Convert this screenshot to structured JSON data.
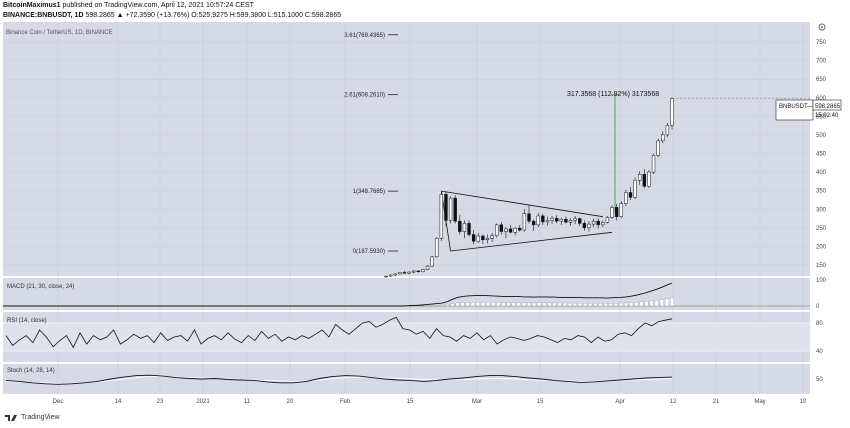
{
  "header": {
    "author": "BitcoinMaximus1",
    "published_text": "published on TradingView.com, April 12, 2021 10:57:24 CEST",
    "symbol_line_prefix": "BINANCE:BNBUSDT, 1D",
    "symbol_line_values": "598.2865 ▲ +72.3590 (+13.76%) O:525.9275 H:599.3800 L:515.1000 C:598.2865"
  },
  "chart_title": "Binance Coin / TetherUS, 1D, BINANCE",
  "price_badge": {
    "symbol": "BNBUSDT",
    "sep": "—",
    "price": "598.2865",
    "countdown": "15:02:40"
  },
  "measure_label": "317.3568 (112.92%) 3173568",
  "fib_levels": [
    {
      "label": "3.61(769.4365)",
      "value": 769.4365
    },
    {
      "label": "2.61(608.2610)",
      "value": 608.261
    },
    {
      "label": "1(348.7685)",
      "value": 348.7685
    },
    {
      "label": "0(187.5930)",
      "value": 187.593
    }
  ],
  "indicators": {
    "macd_label": "MACD (21, 30, close, 24)",
    "rsi_label": "RSI (14, close)",
    "stoch_label": "Stoch (14, 28, 14)",
    "macd_ticks": [
      "100",
      "0"
    ],
    "rsi_ticks": [
      "80",
      "40"
    ],
    "stoch_ticks": [
      "50"
    ]
  },
  "footer": {
    "brand": "TradingView"
  },
  "colors": {
    "panel_bg": "#d6dae6",
    "rsi_band": "#dfe2ea",
    "line": "#111111",
    "grid": "#c8ccd8",
    "measure": "#4caf50"
  },
  "chart_data": {
    "type": "candlestick",
    "title": "Binance Coin / TetherUS, 1D, BINANCE",
    "y_ticks": [
      150,
      200,
      250,
      300,
      350,
      400,
      450,
      500,
      550,
      600,
      650,
      700,
      750
    ],
    "x_ticks": [
      "Dec",
      "14",
      "23",
      "2021",
      "11",
      "20",
      "Feb",
      "15",
      "Mar",
      "15",
      "Apr",
      "12",
      "21",
      "May",
      "10"
    ],
    "last_price": 598.2865,
    "series": [
      {
        "name": "BNBUSDT",
        "ohlc": [
          [
            118,
            121,
            116,
            120
          ],
          [
            120,
            125,
            118,
            123
          ],
          [
            123,
            128,
            120,
            126
          ],
          [
            126,
            132,
            124,
            130
          ],
          [
            130,
            134,
            126,
            128
          ],
          [
            128,
            133,
            125,
            131
          ],
          [
            131,
            136,
            128,
            134
          ],
          [
            134,
            136,
            129,
            132
          ],
          [
            132,
            140,
            130,
            138
          ],
          [
            138,
            150,
            136,
            147
          ],
          [
            147,
            175,
            145,
            172
          ],
          [
            172,
            225,
            170,
            222
          ],
          [
            222,
            345,
            215,
            340
          ],
          [
            340,
            348,
            255,
            270
          ],
          [
            270,
            335,
            262,
            330
          ],
          [
            330,
            338,
            262,
            268
          ],
          [
            268,
            285,
            232,
            240
          ],
          [
            240,
            270,
            222,
            262
          ],
          [
            262,
            270,
            226,
            232
          ],
          [
            232,
            245,
            205,
            214
          ],
          [
            214,
            236,
            210,
            228
          ],
          [
            228,
            232,
            206,
            218
          ],
          [
            218,
            232,
            208,
            222
          ],
          [
            222,
            236,
            212,
            229
          ],
          [
            229,
            262,
            224,
            258
          ],
          [
            258,
            266,
            232,
            240
          ],
          [
            240,
            252,
            222,
            247
          ],
          [
            247,
            258,
            235,
            238
          ],
          [
            238,
            252,
            230,
            249
          ],
          [
            249,
            258,
            240,
            244
          ],
          [
            244,
            300,
            240,
            288
          ],
          [
            288,
            312,
            262,
            268
          ],
          [
            268,
            272,
            242,
            258
          ],
          [
            258,
            290,
            252,
            282
          ],
          [
            282,
            288,
            258,
            266
          ],
          [
            266,
            280,
            256,
            270
          ],
          [
            270,
            282,
            260,
            276
          ],
          [
            276,
            284,
            262,
            268
          ],
          [
            268,
            278,
            258,
            273
          ],
          [
            273,
            280,
            262,
            265
          ],
          [
            265,
            276,
            255,
            270
          ],
          [
            270,
            282,
            260,
            275
          ],
          [
            275,
            278,
            255,
            262
          ],
          [
            262,
            270,
            242,
            250
          ],
          [
            250,
            268,
            240,
            260
          ],
          [
            260,
            275,
            252,
            268
          ],
          [
            268,
            275,
            248,
            258
          ],
          [
            258,
            270,
            252,
            265
          ],
          [
            265,
            282,
            262,
            278
          ],
          [
            278,
            310,
            274,
            305
          ],
          [
            305,
            314,
            270,
            280
          ],
          [
            280,
            322,
            276,
            315
          ],
          [
            315,
            352,
            308,
            345
          ],
          [
            345,
            360,
            325,
            332
          ],
          [
            332,
            385,
            328,
            378
          ],
          [
            378,
            402,
            366,
            394
          ],
          [
            394,
            408,
            356,
            362
          ],
          [
            362,
            405,
            358,
            400
          ],
          [
            400,
            450,
            395,
            445
          ],
          [
            445,
            490,
            440,
            484
          ],
          [
            484,
            510,
            478,
            500
          ],
          [
            500,
            532,
            494,
            526
          ],
          [
            526,
            600,
            515,
            598
          ]
        ]
      }
    ],
    "macd": [
      0,
      0,
      0,
      0,
      1,
      2,
      3,
      4,
      6,
      8,
      10,
      12,
      18,
      28,
      36,
      40,
      42,
      43,
      44,
      44,
      43,
      42,
      41,
      40,
      40,
      39,
      39,
      38,
      38,
      37,
      38,
      38,
      37,
      37,
      36,
      36,
      35,
      35,
      35,
      34,
      34,
      34,
      34,
      33,
      34,
      35,
      36,
      38,
      41,
      45,
      50,
      56,
      63,
      70,
      78,
      87,
      96
    ],
    "rsi": [
      62,
      48,
      56,
      62,
      52,
      70,
      60,
      46,
      55,
      62,
      45,
      66,
      50,
      62,
      56,
      60,
      70,
      50,
      56,
      64,
      58,
      62,
      52,
      66,
      55,
      60,
      62,
      54,
      70,
      50,
      58,
      62,
      56,
      66,
      57,
      52,
      62,
      55,
      68,
      58,
      64,
      54,
      60,
      56,
      62,
      58,
      64,
      70,
      60,
      78,
      70,
      64,
      72,
      80,
      82,
      74,
      78,
      84,
      88,
      72,
      70,
      64,
      68,
      58,
      72,
      62,
      60,
      54,
      62,
      58,
      66,
      56,
      62,
      50,
      56,
      60,
      58,
      55,
      58,
      62,
      60,
      56,
      52,
      58,
      56,
      62,
      60,
      52,
      60,
      54,
      56,
      64,
      66,
      62,
      72,
      80,
      76,
      82,
      84,
      86
    ],
    "stoch_k": [
      44,
      40,
      34,
      30,
      28,
      30,
      34,
      40,
      50,
      58,
      64,
      66,
      62,
      56,
      52,
      50,
      52,
      48,
      46,
      44,
      38,
      34,
      34,
      40,
      52,
      60,
      64,
      62,
      56,
      50,
      46,
      44,
      40,
      44,
      50,
      54,
      60,
      64,
      64,
      60,
      54,
      50,
      44,
      40,
      36,
      38,
      42,
      46,
      50,
      54,
      56,
      58
    ],
    "stoch_d": [
      40,
      38,
      36,
      34,
      32,
      32,
      34,
      38,
      44,
      50,
      56,
      60,
      60,
      58,
      56,
      54,
      52,
      50,
      48,
      46,
      44,
      42,
      40,
      42,
      46,
      52,
      56,
      58,
      56,
      54,
      52,
      50,
      48,
      47,
      47,
      48,
      50,
      52,
      52,
      50,
      48,
      46,
      44,
      42,
      40,
      40,
      42,
      44,
      46,
      48,
      50,
      52
    ]
  }
}
